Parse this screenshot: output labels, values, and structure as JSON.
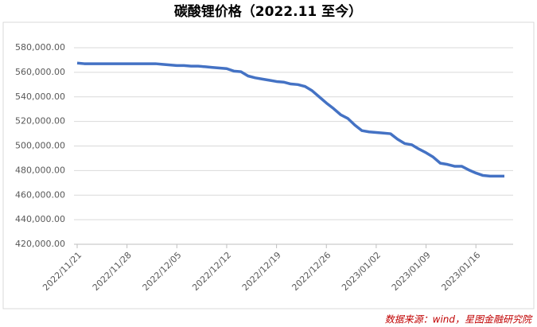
{
  "chart_data": {
    "type": "line",
    "title": "碳酸锂价格（2022.11 至今）",
    "source": "数据来源：wind，星图金融研究院",
    "categories": [
      "2022/11/21",
      null,
      null,
      null,
      null,
      null,
      null,
      "2022/11/28",
      null,
      null,
      null,
      null,
      null,
      null,
      "2022/12/05",
      null,
      null,
      null,
      null,
      null,
      null,
      "2022/12/12",
      null,
      null,
      null,
      null,
      null,
      null,
      "2022/12/19",
      null,
      null,
      null,
      null,
      null,
      null,
      "2022/12/26",
      null,
      null,
      null,
      null,
      null,
      null,
      "2023/01/02",
      null,
      null,
      null,
      null,
      null,
      null,
      "2023/01/09",
      null,
      null,
      null,
      null,
      null,
      null,
      "2023/01/16",
      null,
      null,
      null,
      null
    ],
    "series": [
      {
        "name": "碳酸锂价格",
        "color": "#4472c4",
        "values": [
          567500,
          567000,
          567000,
          567000,
          567000,
          567000,
          567000,
          567000,
          567000,
          567000,
          567000,
          567000,
          566500,
          566000,
          565500,
          565500,
          565000,
          565000,
          564500,
          564000,
          563500,
          563000,
          561000,
          560500,
          557000,
          555500,
          554500,
          553500,
          552500,
          552000,
          550500,
          550000,
          548500,
          545000,
          540000,
          535000,
          530500,
          525500,
          522500,
          517000,
          512500,
          511500,
          511000,
          510500,
          510000,
          505500,
          502000,
          501000,
          497500,
          494500,
          491000,
          486000,
          485000,
          483500,
          483500,
          480500,
          478000,
          476000,
          475500,
          475500,
          475500
        ]
      }
    ],
    "ylim": [
      420000,
      580000
    ],
    "yticks": [
      {
        "value": 420000,
        "label": "420,000.00"
      },
      {
        "value": 440000,
        "label": "440,000.00"
      },
      {
        "value": 460000,
        "label": "460,000.00"
      },
      {
        "value": 480000,
        "label": "480,000.00"
      },
      {
        "value": 500000,
        "label": "500,000.00"
      },
      {
        "value": 520000,
        "label": "520,000.00"
      },
      {
        "value": 540000,
        "label": "540,000.00"
      },
      {
        "value": 560000,
        "label": "560,000.00"
      },
      {
        "value": 580000,
        "label": "580,000.00"
      }
    ],
    "grid": true
  }
}
